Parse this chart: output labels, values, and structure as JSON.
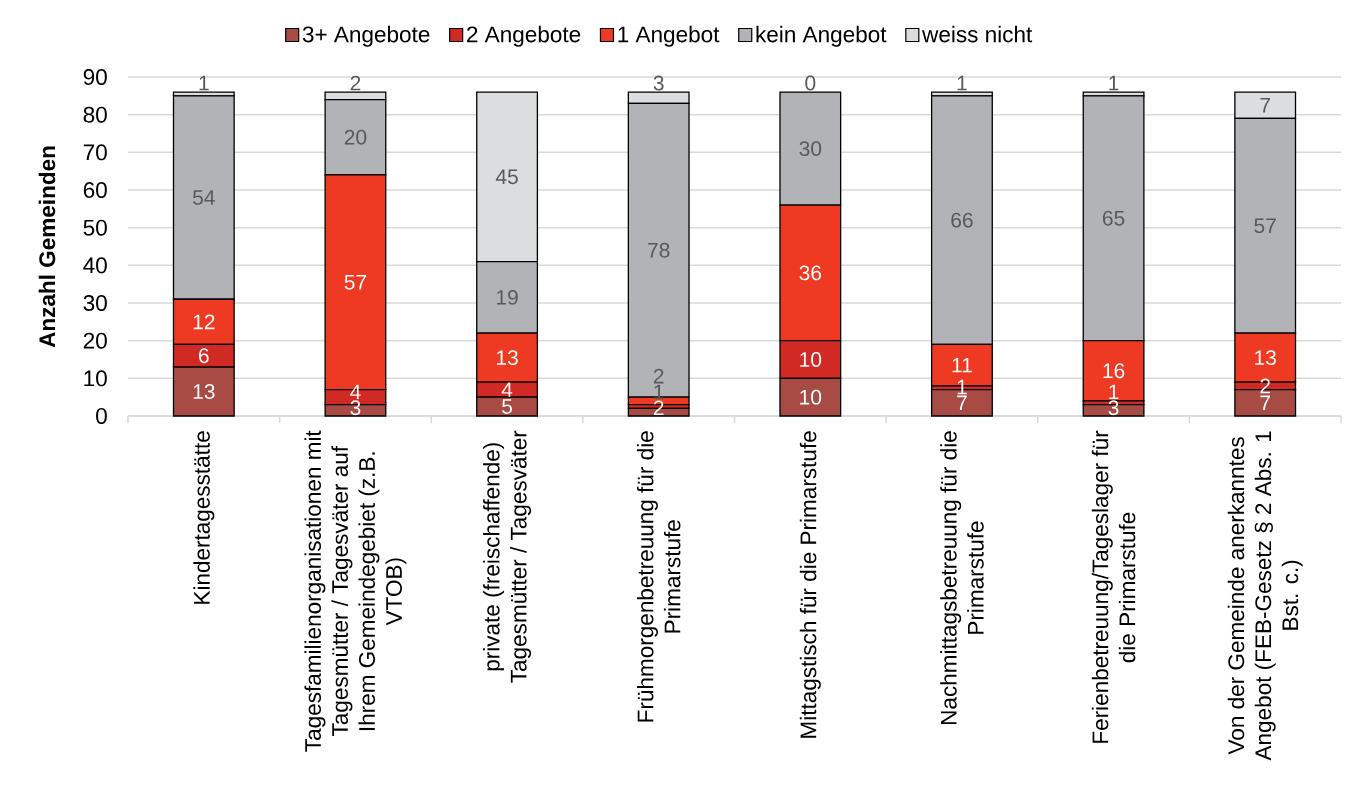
{
  "chart_data": {
    "type": "bar",
    "stacked": true,
    "ylabel": "Anzahl Gemeinden",
    "categories": [
      "Kindertagesstätte",
      "Tagesfamilienorganisationen mit Tagesmütter / Tagesväter auf Ihrem Gemeindegebiet (z.B. VTOB)",
      "private (freischaffende) Tagesmütter / Tagesväter",
      "Frühmorgenbetreuung für die Primarstufe",
      "Mittagstisch für die Primarstufe",
      "Nachmittagsbetreuung für die Primarstufe",
      "Ferienbetreuung/Tageslager für die Primarstufe",
      "Von der Gemeinde anerkanntes Angebot (FEB-Gesetz § 2 Abs. 1 Bst. c.)"
    ],
    "series": [
      {
        "name": "3+ Angebote",
        "color": "#a84b45",
        "values": [
          13,
          3,
          5,
          2,
          10,
          7,
          3,
          7
        ]
      },
      {
        "name": "2 Angebote",
        "color": "#d12a24",
        "values": [
          6,
          4,
          4,
          1,
          10,
          1,
          1,
          2
        ]
      },
      {
        "name": "1 Angebot",
        "color": "#ef3a23",
        "values": [
          12,
          57,
          13,
          2,
          36,
          11,
          16,
          13
        ]
      },
      {
        "name": "kein Angebot",
        "color": "#b2b3b6",
        "values": [
          54,
          20,
          19,
          78,
          30,
          66,
          65,
          57
        ]
      },
      {
        "name": "weiss nicht",
        "color": "#dcdddf",
        "values": [
          1,
          2,
          45,
          3,
          0,
          1,
          1,
          7
        ]
      }
    ],
    "ylim": [
      0,
      90
    ],
    "yticks": [
      0,
      10,
      20,
      30,
      40,
      50,
      60,
      70,
      80,
      90
    ],
    "grid": "y",
    "legend": "top",
    "data_labels": true
  }
}
